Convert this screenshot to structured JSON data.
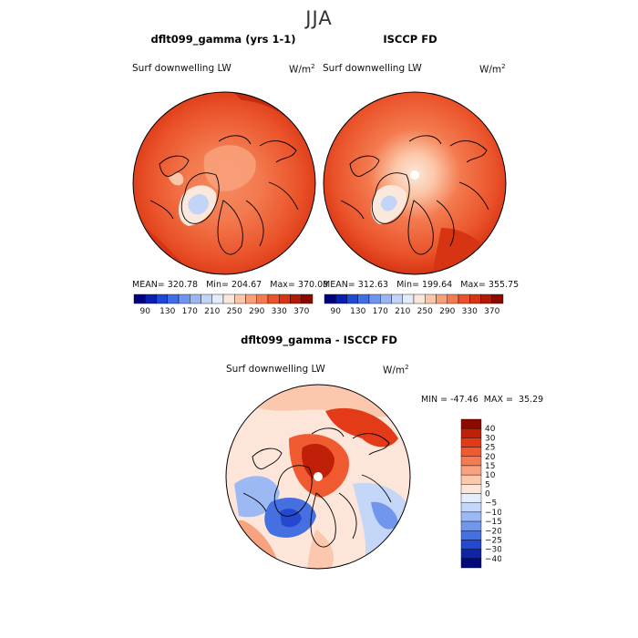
{
  "figure": {
    "season": "JJA"
  },
  "panels": [
    {
      "title": "dflt099_gamma (yrs 1-1)",
      "variable": "Surf downwelling LW",
      "units": "W/m",
      "units_exp": "2",
      "stats": {
        "mean_label": "MEAN=",
        "mean": "320.78",
        "min_label": "Min=",
        "min": "204.67",
        "max_label": "Max=",
        "max": "370.03"
      }
    },
    {
      "title": "ISCCP FD",
      "variable": "Surf downwelling LW",
      "units": "W/m",
      "units_exp": "2",
      "stats": {
        "mean_label": "MEAN=",
        "mean": "312.63",
        "min_label": "Min=",
        "min": "199.64",
        "max_label": "Max=",
        "max": "355.75"
      }
    },
    {
      "title": "dflt099_gamma - ISCCP FD",
      "variable": "Surf downwelling LW",
      "units": "W/m",
      "units_exp": "2",
      "stats": {
        "min_label": "MIN =",
        "min": "-47.46",
        "max_label": "MAX =",
        "max": "35.29"
      }
    }
  ],
  "chart_data": [
    {
      "type": "heatmap",
      "projection": "north-polar-stereographic",
      "title": "dflt099_gamma (yrs 1-1)",
      "variable": "Surf downwelling LW",
      "units": "W/m^2",
      "mean": 320.78,
      "min": 204.67,
      "max": 370.03,
      "colorbar": {
        "orientation": "horizontal",
        "levels": [
          90,
          110,
          130,
          150,
          170,
          190,
          210,
          230,
          250,
          270,
          290,
          310,
          330,
          350,
          370
        ],
        "tick_labels": [
          "90",
          "130",
          "170",
          "210",
          "250",
          "290",
          "330",
          "370"
        ],
        "colors": [
          "#000080",
          "#0a1fb0",
          "#1f48d6",
          "#3f6fe6",
          "#6e95ee",
          "#9ab7f3",
          "#c2d5f8",
          "#e3ecfa",
          "#fbe8dc",
          "#fbc7a8",
          "#f8a07a",
          "#f47a4f",
          "#ea5229",
          "#d63412",
          "#b01a05",
          "#8a0a00"
        ]
      }
    },
    {
      "type": "heatmap",
      "projection": "north-polar-stereographic",
      "title": "ISCCP FD",
      "variable": "Surf downwelling LW",
      "units": "W/m^2",
      "mean": 312.63,
      "min": 199.64,
      "max": 355.75,
      "colorbar": {
        "orientation": "horizontal",
        "levels": [
          90,
          110,
          130,
          150,
          170,
          190,
          210,
          230,
          250,
          270,
          290,
          310,
          330,
          350,
          370
        ],
        "tick_labels": [
          "90",
          "130",
          "170",
          "210",
          "250",
          "290",
          "330",
          "370"
        ],
        "colors": [
          "#000080",
          "#0a1fb0",
          "#1f48d6",
          "#3f6fe6",
          "#6e95ee",
          "#9ab7f3",
          "#c2d5f8",
          "#e3ecfa",
          "#fbe8dc",
          "#fbc7a8",
          "#f8a07a",
          "#f47a4f",
          "#ea5229",
          "#d63412",
          "#b01a05",
          "#8a0a00"
        ]
      }
    },
    {
      "type": "heatmap",
      "projection": "north-polar-stereographic",
      "title": "dflt099_gamma - ISCCP FD",
      "variable": "Surf downwelling LW",
      "units": "W/m^2",
      "min": -47.46,
      "max": 35.29,
      "colorbar": {
        "orientation": "vertical",
        "levels": [
          -40,
          -30,
          -25,
          -20,
          -15,
          -10,
          -5,
          0,
          5,
          10,
          15,
          20,
          25,
          30,
          40
        ],
        "tick_labels": [
          "40",
          "30",
          "25",
          "20",
          "15",
          "10",
          "5",
          "0",
          "−5",
          "−10",
          "−15",
          "−20",
          "−25",
          "−30",
          "−40"
        ],
        "colors": [
          "#8a0a00",
          "#c02008",
          "#e33a17",
          "#f05a30",
          "#f47c54",
          "#f8a27f",
          "#fbc8ae",
          "#fde6d9",
          "#e4edfb",
          "#c4d7f8",
          "#9db9f3",
          "#7197ec",
          "#4670e2",
          "#2448cf",
          "#1024aa",
          "#020a7a"
        ]
      }
    }
  ]
}
